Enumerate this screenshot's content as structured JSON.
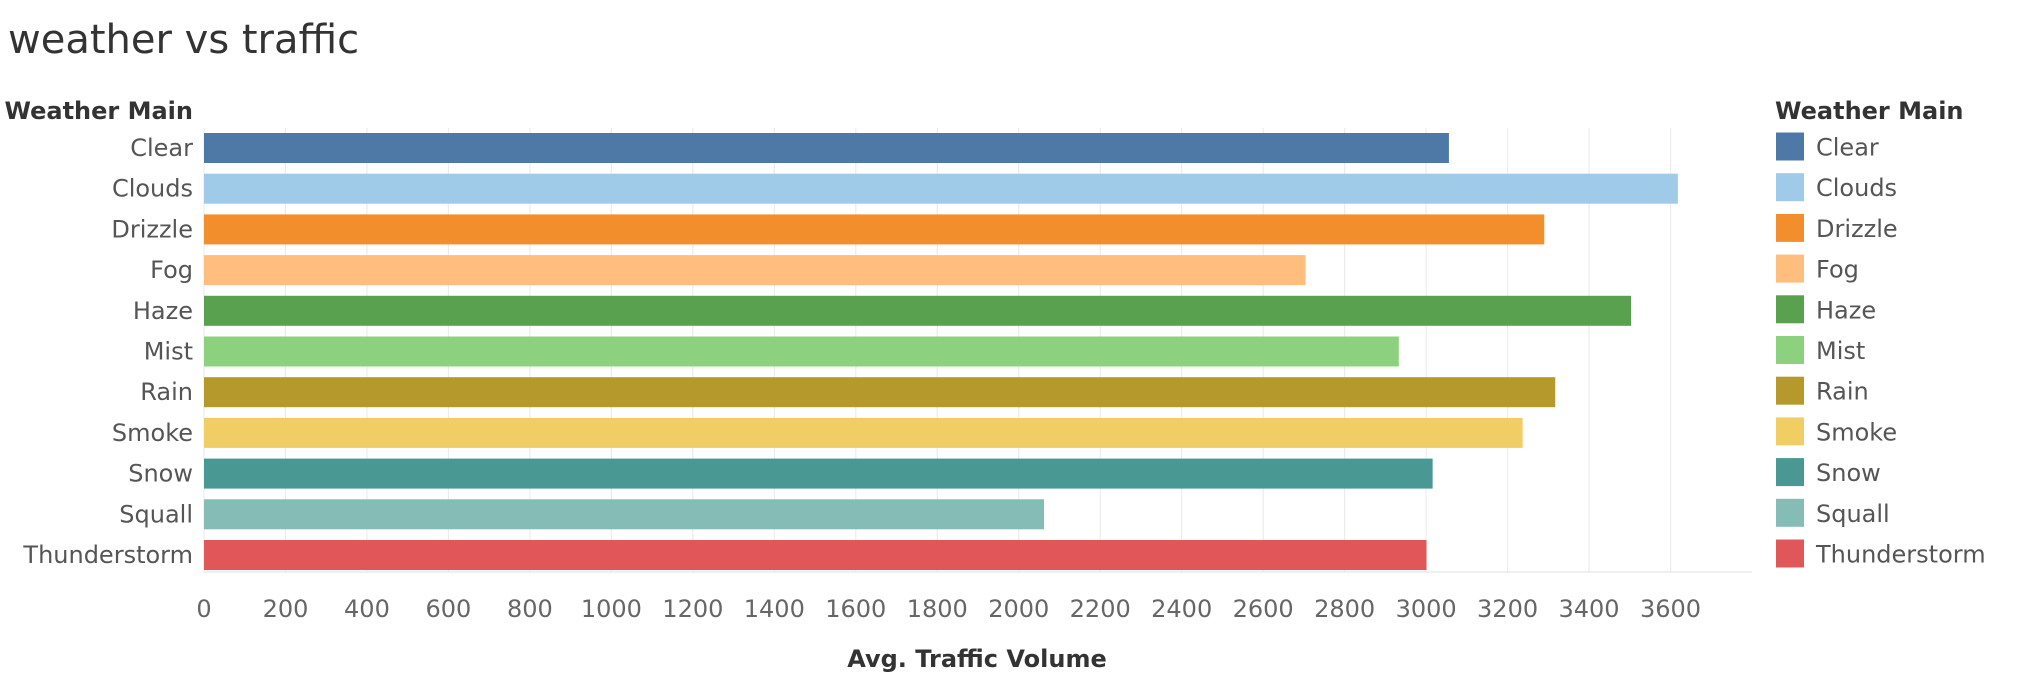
{
  "title": "weather vs traffic",
  "chart_data": {
    "type": "bar",
    "orientation": "horizontal",
    "title": "weather vs traffic",
    "row_header": "Weather Main",
    "xlabel": "Avg. Traffic Volume",
    "ylabel": "Weather Main",
    "xlim": [
      0,
      3800
    ],
    "x_ticks": [
      0,
      200,
      400,
      600,
      800,
      1000,
      1200,
      1400,
      1600,
      1800,
      2000,
      2200,
      2400,
      2600,
      2800,
      3000,
      3200,
      3400,
      3600
    ],
    "grid": true,
    "legend": {
      "title": "Weather Main",
      "placement": "right"
    },
    "categories": [
      "Clear",
      "Clouds",
      "Drizzle",
      "Fog",
      "Haze",
      "Mist",
      "Rain",
      "Smoke",
      "Snow",
      "Squall",
      "Thunderstorm"
    ],
    "values": [
      3056,
      3618,
      3290,
      2704,
      3503,
      2933,
      3317,
      3237,
      3016,
      2062,
      3001
    ],
    "colors": [
      "#4e79a7",
      "#a0cbe8",
      "#f28e2b",
      "#ffbe7d",
      "#59a14f",
      "#8cd17d",
      "#b6992d",
      "#f1ce63",
      "#499894",
      "#86bcb6",
      "#e15759"
    ]
  }
}
